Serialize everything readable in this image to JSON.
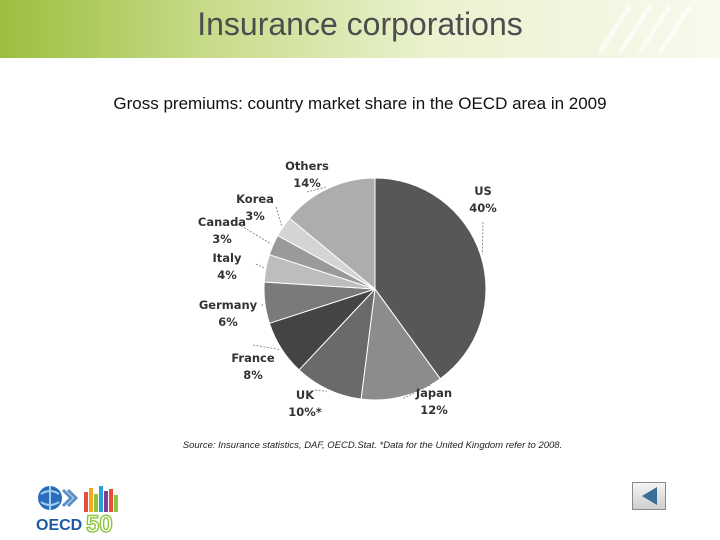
{
  "slide": {
    "title": "Insurance corporations",
    "chart_title": "Gross premiums: country market share in the OECD area in 2009",
    "source": "Source: Insurance statistics, DAF, OECD.Stat. *Data for the United Kingdom refer to 2008."
  },
  "logo": {
    "text": "OECD",
    "anniversary": "50"
  },
  "nav": {
    "back_icon": "back-arrow-icon"
  },
  "chart_data": {
    "type": "pie",
    "title": "Gross premiums: country market share in the OECD area in 2009",
    "start": "12 o'clock",
    "direction": "clockwise",
    "slices": [
      {
        "name": "US",
        "label": "40%",
        "value": 40,
        "color": "#575757"
      },
      {
        "name": "Japan",
        "label": "12%",
        "value": 12,
        "color": "#8c8c8c"
      },
      {
        "name": "UK",
        "label": "10%*",
        "value": 10,
        "color": "#6a6a6a"
      },
      {
        "name": "France",
        "label": "8%",
        "value": 8,
        "color": "#444444"
      },
      {
        "name": "Germany",
        "label": "6%",
        "value": 6,
        "color": "#7a7a7a"
      },
      {
        "name": "Italy",
        "label": "4%",
        "value": 4,
        "color": "#bdbdbd"
      },
      {
        "name": "Canada",
        "label": "3%",
        "value": 3,
        "color": "#9a9a9a"
      },
      {
        "name": "Korea",
        "label": "3%",
        "value": 3,
        "color": "#d4d4d4"
      },
      {
        "name": "Others",
        "label": "14%",
        "value": 14,
        "color": "#adadad"
      }
    ]
  }
}
